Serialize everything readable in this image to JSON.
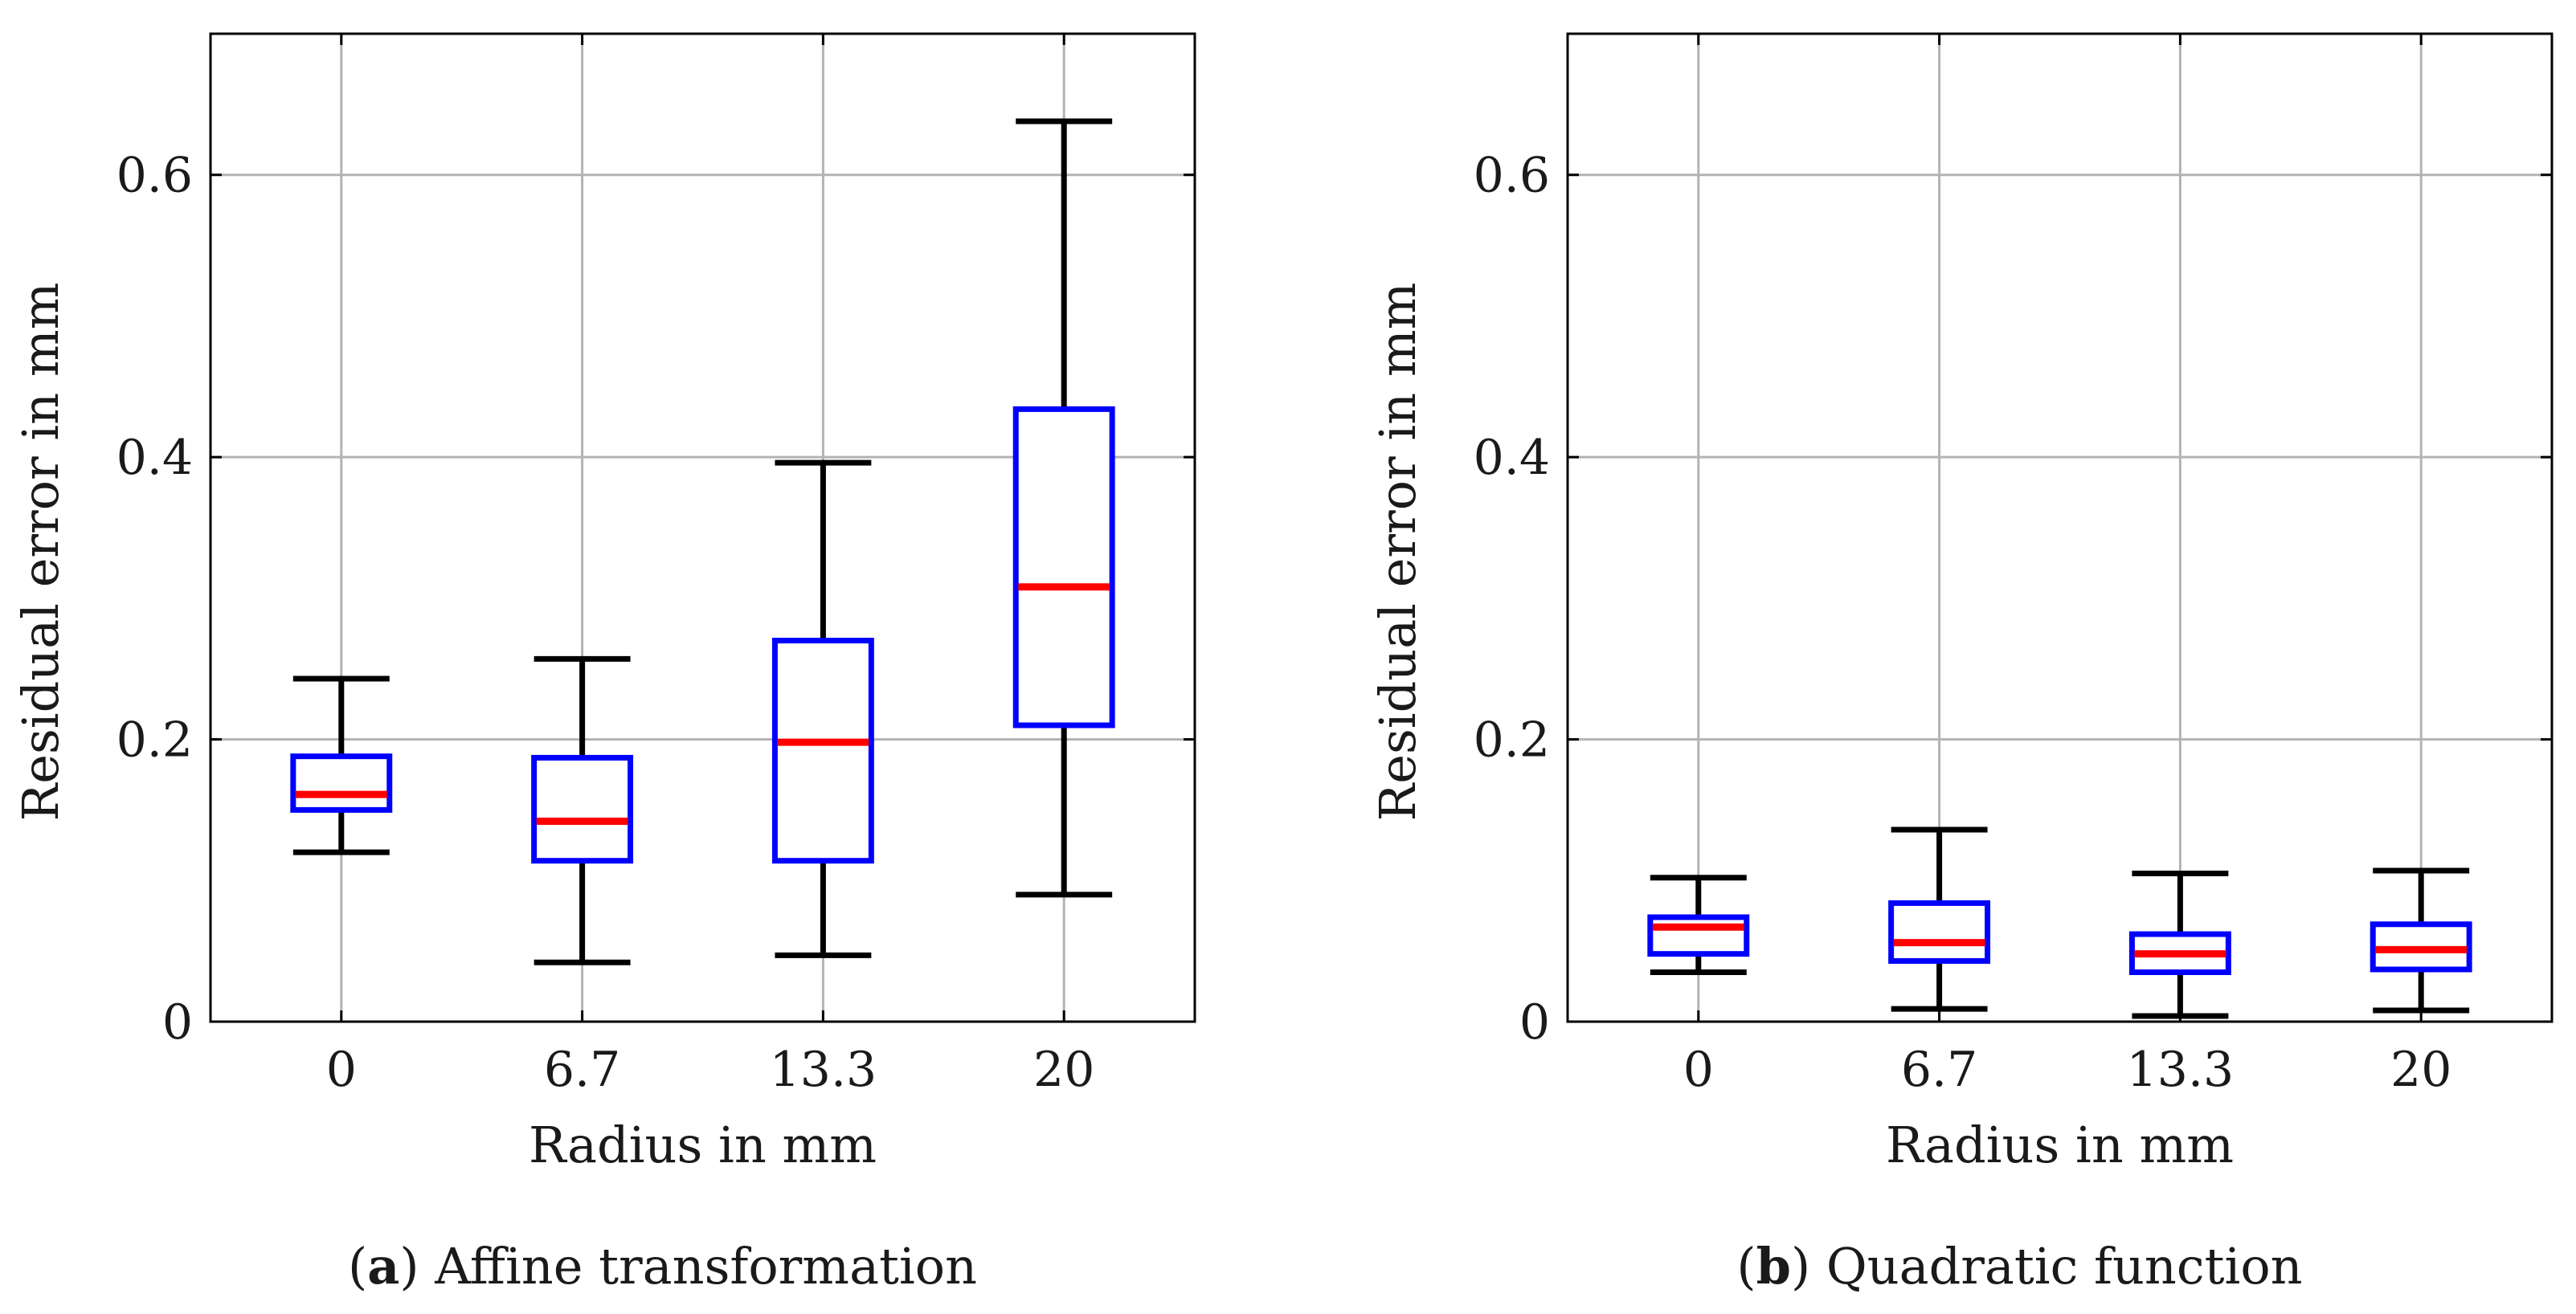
{
  "chart_data": [
    {
      "type": "box",
      "caption_label": "a",
      "caption_text": "Affine transformation",
      "xlabel": "Radius in mm",
      "ylabel": "Residual error in mm",
      "categories": [
        "0",
        "6.7",
        "13.3",
        "20"
      ],
      "ylim": [
        0,
        0.7
      ],
      "yticks": [
        0,
        0.2,
        0.4,
        0.6
      ],
      "ytick_labels": [
        "0",
        "0.2",
        "0.4",
        "0.6"
      ],
      "grid": true,
      "boxes": [
        {
          "whisker_low": 0.12,
          "q1": 0.15,
          "median": 0.161,
          "q3": 0.188,
          "whisker_high": 0.243
        },
        {
          "whisker_low": 0.042,
          "q1": 0.114,
          "median": 0.142,
          "q3": 0.187,
          "whisker_high": 0.257
        },
        {
          "whisker_low": 0.047,
          "q1": 0.114,
          "median": 0.198,
          "q3": 0.27,
          "whisker_high": 0.396
        },
        {
          "whisker_low": 0.09,
          "q1": 0.21,
          "median": 0.308,
          "q3": 0.434,
          "whisker_high": 0.638
        }
      ],
      "colors": {
        "box": "#0000ff",
        "median": "#ff0000",
        "whisker": "#000000",
        "grid": "#b3b3b3"
      }
    },
    {
      "type": "box",
      "caption_label": "b",
      "caption_text": "Quadratic function",
      "xlabel": "Radius in mm",
      "ylabel": "Residual error in mm",
      "categories": [
        "0",
        "6.7",
        "13.3",
        "20"
      ],
      "ylim": [
        0,
        0.7
      ],
      "yticks": [
        0,
        0.2,
        0.4,
        0.6
      ],
      "ytick_labels": [
        "0",
        "0.2",
        "0.4",
        "0.6"
      ],
      "grid": true,
      "boxes": [
        {
          "whisker_low": 0.035,
          "q1": 0.048,
          "median": 0.067,
          "q3": 0.074,
          "whisker_high": 0.102
        },
        {
          "whisker_low": 0.009,
          "q1": 0.043,
          "median": 0.056,
          "q3": 0.084,
          "whisker_high": 0.136
        },
        {
          "whisker_low": 0.004,
          "q1": 0.035,
          "median": 0.048,
          "q3": 0.062,
          "whisker_high": 0.105
        },
        {
          "whisker_low": 0.008,
          "q1": 0.037,
          "median": 0.051,
          "q3": 0.069,
          "whisker_high": 0.107
        }
      ],
      "colors": {
        "box": "#0000ff",
        "median": "#ff0000",
        "whisker": "#000000",
        "grid": "#b3b3b3"
      }
    }
  ]
}
